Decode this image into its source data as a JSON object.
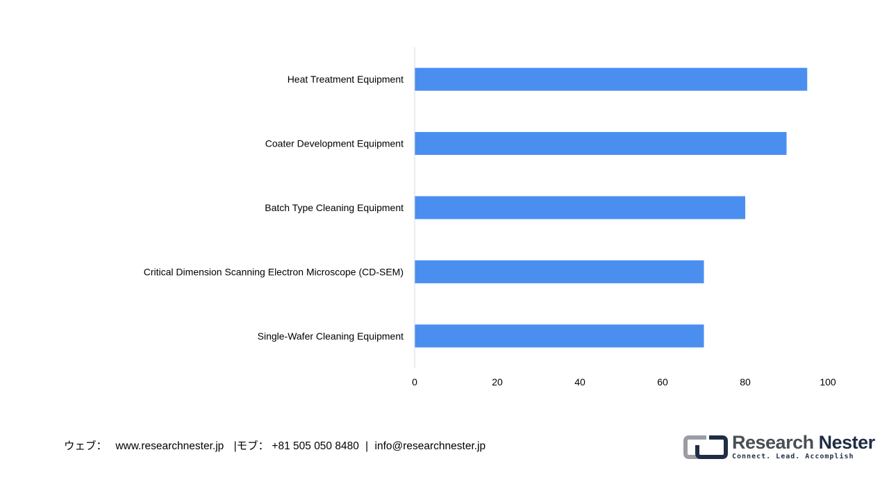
{
  "chart_data": {
    "type": "bar",
    "orientation": "horizontal",
    "categories": [
      "Heat Treatment Equipment",
      "Coater Development Equipment",
      "Batch Type Cleaning Equipment",
      "Critical Dimension Scanning Electron Microscope (CD-SEM)",
      "Single-Wafer Cleaning Equipment"
    ],
    "values": [
      95,
      90,
      80,
      70,
      70
    ],
    "xlim": [
      0,
      100
    ],
    "xticks": [
      "0",
      "20",
      "40",
      "60",
      "80",
      "100"
    ],
    "grid": false,
    "bar_color": "#4a8ff0"
  },
  "footer": {
    "web_label": "ウェブ：",
    "web_url": "www.researchnester.jp",
    "phone_label": "|モブ：",
    "phone": "+81 505 050 8480",
    "sep": "|",
    "email": "info@researchnester.jp"
  },
  "logo": {
    "name_part1": "Research",
    "name_part2": "Nester",
    "tagline": "Connect. Lead. Accomplish"
  }
}
